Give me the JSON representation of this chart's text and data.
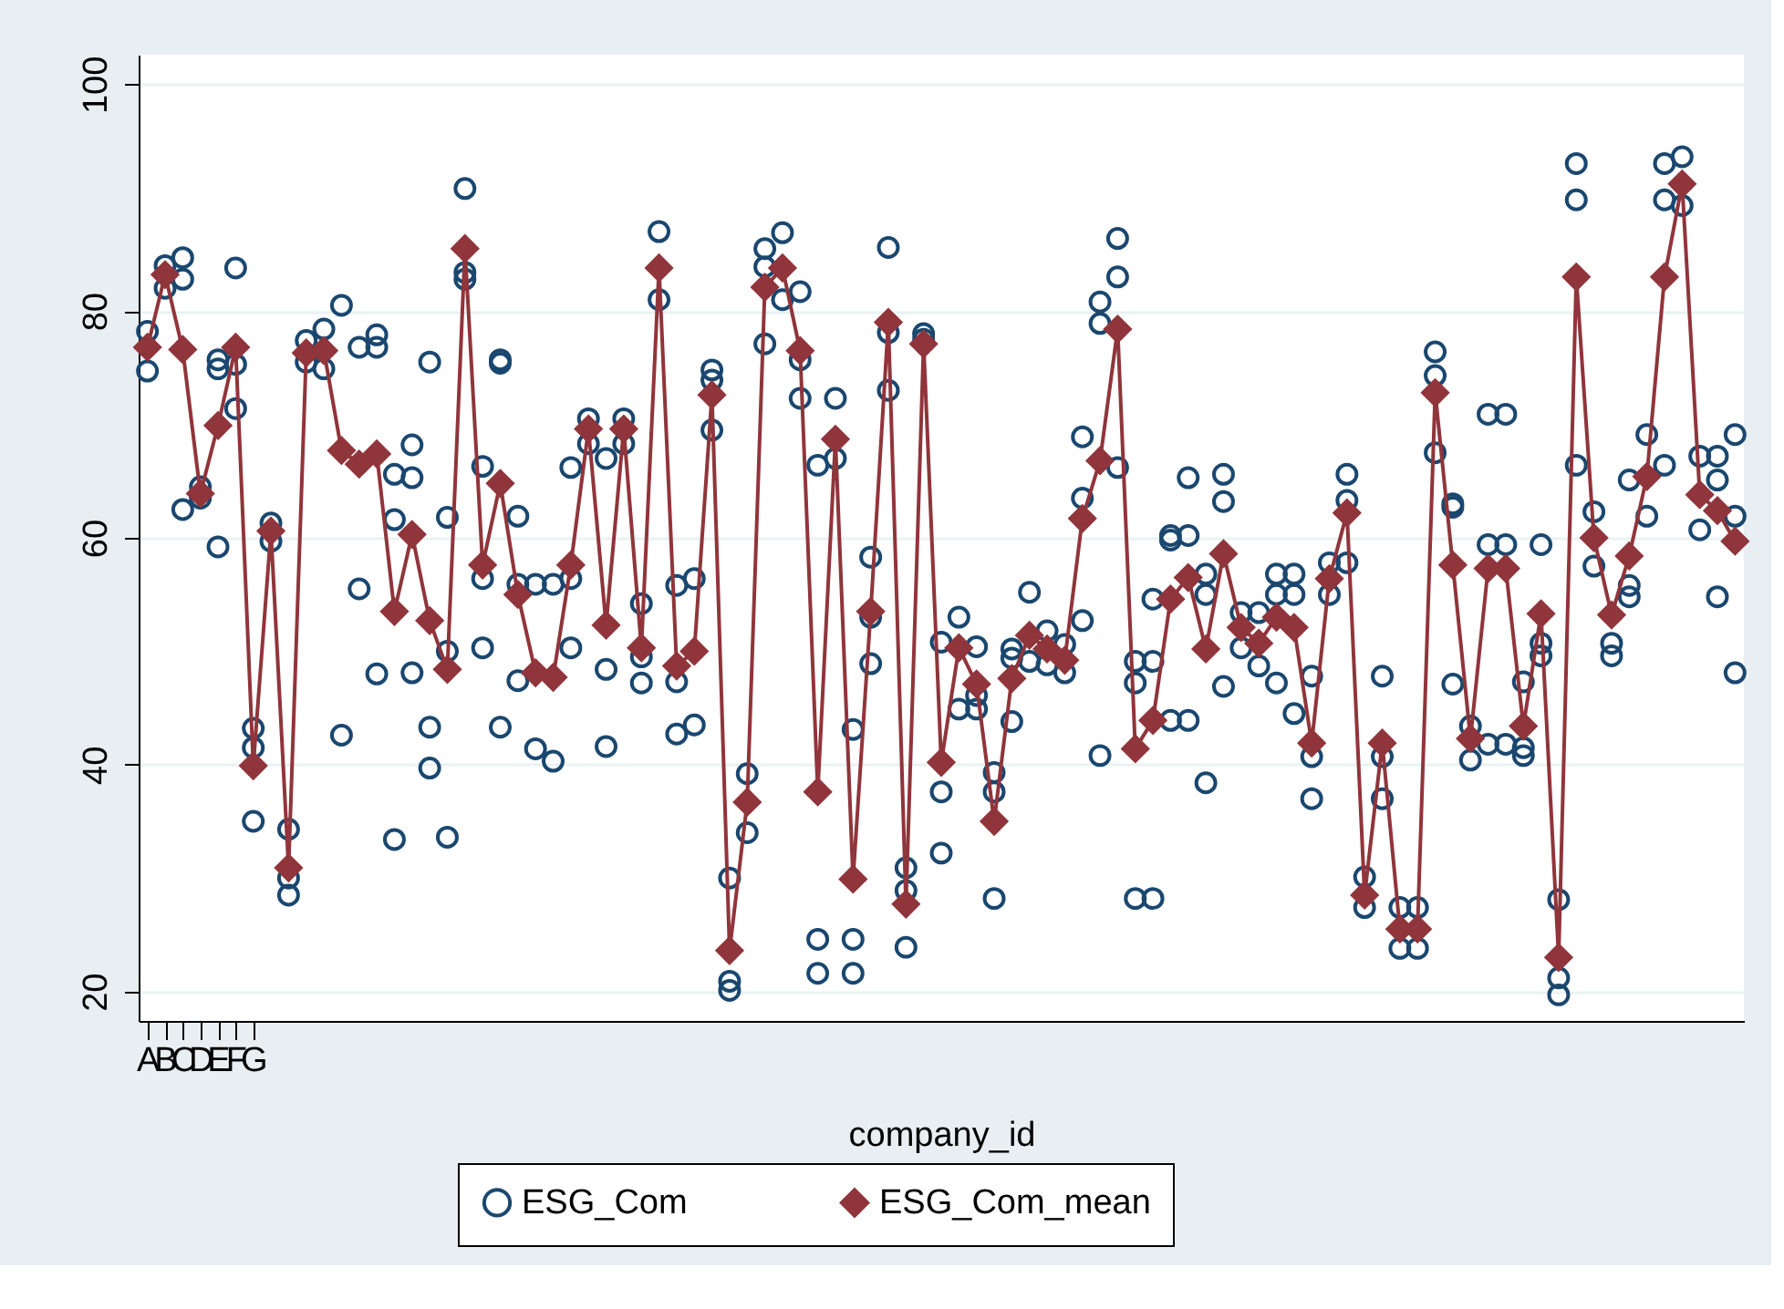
{
  "chart_data": {
    "type": "line",
    "categories": [
      "A",
      "B",
      "C",
      "D",
      "E",
      "F",
      "G",
      null,
      null,
      null,
      null,
      null,
      null,
      null,
      null,
      null,
      null,
      null,
      null,
      null,
      null,
      null,
      null,
      null,
      null,
      null,
      null,
      null,
      null,
      null,
      null,
      null,
      null,
      null,
      null,
      null,
      null,
      null,
      null,
      null,
      null,
      null,
      null,
      null,
      null,
      null,
      null,
      null,
      null,
      null,
      null,
      null,
      null,
      null,
      null,
      null,
      null,
      null,
      null,
      null,
      null,
      null,
      null,
      null,
      null,
      null,
      null,
      null,
      null,
      null,
      null,
      null,
      null,
      null,
      null,
      null,
      null,
      null,
      null,
      null,
      null,
      null,
      null,
      null,
      null,
      null,
      null,
      null,
      null,
      null,
      null
    ],
    "xlabel": "company_id",
    "ylim": [
      17.4,
      102.6
    ],
    "yticks": [
      20,
      40,
      60,
      80,
      100
    ],
    "grid": "y",
    "legend": "bottom",
    "series": [
      {
        "name": "ESG_Com",
        "type": "scatter",
        "marker": "circle",
        "color": "#1a476f",
        "values": [
          78.2,
          84.0,
          84.7,
          64.5,
          75.7,
          83.8,
          43.2,
          61.3,
          34.3,
          77.4,
          78.4,
          80.5,
          76.8,
          77.9,
          65.6,
          68.2,
          75.5,
          61.8,
          90.8,
          66.3,
          75.7,
          61.9,
          55.9,
          55.9,
          66.2,
          70.5,
          67.0,
          70.5,
          54.2,
          87.0,
          55.8,
          56.4,
          74.8,
          30.0,
          39.2,
          85.5,
          86.9,
          81.7,
          66.4,
          72.3,
          43.1,
          58.3,
          85.6,
          30.9,
          78.0,
          50.8,
          53.0,
          50.4,
          39.3,
          50.2,
          55.2,
          51.8,
          50.6,
          68.9,
          80.8,
          86.4,
          49.1,
          54.6,
          60.2,
          65.3,
          56.8,
          65.6,
          53.4,
          53.4,
          56.8,
          56.8,
          47.8,
          57.8,
          65.6,
          30.1,
          47.8,
          27.4,
          27.4,
          76.4,
          63.0,
          43.4,
          70.9,
          70.9,
          47.3,
          59.4,
          28.1,
          93.0,
          62.3,
          50.7,
          65.1,
          69.1,
          93.0,
          93.6,
          67.2,
          67.2,
          69.1
        ]
      },
      {
        "type": "scatter",
        "marker": "circle",
        "color": "#1a476f",
        "values": [
          74.7,
          82.0,
          82.8,
          63.5,
          74.9,
          75.3,
          41.5,
          59.7,
          30.0,
          75.5,
          74.9,
          42.6,
          55.5,
          76.8,
          61.6,
          65.3,
          43.3,
          50.0,
          83.4,
          56.4,
          75.4,
          55.9,
          41.4,
          40.3,
          56.4,
          68.3,
          48.4,
          68.3,
          49.5,
          81.0,
          47.3,
          43.5,
          73.9,
          20.9,
          34.0,
          83.9,
          81.0,
          75.7,
          24.6,
          67.0,
          24.6,
          53.0,
          78.1,
          28.9,
          77.5,
          37.6,
          44.9,
          46.1,
          37.6,
          49.4,
          49.1,
          48.8,
          48.1,
          63.5,
          78.9,
          83.0,
          47.2,
          49.1,
          59.8,
          60.2,
          55.0,
          63.2,
          50.3,
          48.7,
          55.0,
          55.0,
          40.7,
          55.0,
          63.3,
          27.4,
          40.7,
          23.8,
          23.8,
          74.3,
          62.7,
          40.4,
          59.4,
          59.4,
          41.5,
          50.7,
          21.2,
          89.8,
          57.5,
          49.6,
          55.8,
          61.9,
          89.8,
          89.3,
          60.7,
          65.1,
          61.9
        ]
      },
      {
        "type": "scatter",
        "marker": "circle",
        "color": "#1a476f",
        "values": [
          null,
          null,
          62.5,
          null,
          59.2,
          71.4,
          35.0,
          null,
          28.5,
          null,
          null,
          null,
          null,
          48.0,
          33.4,
          48.1,
          39.7,
          33.6,
          82.8,
          50.3,
          43.3,
          47.4,
          null,
          null,
          50.3,
          null,
          41.6,
          null,
          47.2,
          null,
          42.7,
          null,
          69.5,
          20.1,
          null,
          77.1,
          null,
          72.3,
          21.6,
          null,
          21.6,
          48.9,
          73.0,
          23.9,
          null,
          32.2,
          null,
          44.9,
          28.2,
          43.8,
          null,
          null,
          null,
          52.7,
          40.8,
          66.2,
          28.2,
          28.2,
          43.9,
          43.9,
          38.4,
          46.9,
          null,
          null,
          47.2,
          44.5,
          37.0,
          null,
          57.8,
          null,
          37.0,
          null,
          null,
          67.5,
          47.1,
          null,
          41.8,
          41.8,
          40.8,
          49.6,
          19.7,
          66.4,
          null,
          null,
          54.8,
          null,
          66.4,
          null,
          null,
          54.8,
          48.1
        ]
      },
      {
        "name": "ESG_Com_mean",
        "marker": "diamond",
        "color": "#90353b",
        "values": [
          76.8,
          83.2,
          76.6,
          63.9,
          69.9,
          76.8,
          39.9,
          60.6,
          30.9,
          76.3,
          76.5,
          67.7,
          66.5,
          67.4,
          53.5,
          60.3,
          52.7,
          48.4,
          85.5,
          57.6,
          64.8,
          55.0,
          48.1,
          47.7,
          57.6,
          69.6,
          52.3,
          69.6,
          50.3,
          83.8,
          48.7,
          50.0,
          72.6,
          23.6,
          36.7,
          82.1,
          83.8,
          76.5,
          37.6,
          68.7,
          29.9,
          53.5,
          79.0,
          27.7,
          77.1,
          40.2,
          50.3,
          47.1,
          35.0,
          47.6,
          51.4,
          50.2,
          49.2,
          61.7,
          66.8,
          78.4,
          41.4,
          43.9,
          54.6,
          56.5,
          50.2,
          58.6,
          52.1,
          50.7,
          53.0,
          52.1,
          41.9,
          56.4,
          62.2,
          28.5,
          41.9,
          25.5,
          25.5,
          72.8,
          57.6,
          42.3,
          57.3,
          57.3,
          43.4,
          53.3,
          23.0,
          83.0,
          60.0,
          53.2,
          58.4,
          65.4,
          83.0,
          91.2,
          63.8,
          62.4,
          59.7
        ]
      }
    ]
  }
}
